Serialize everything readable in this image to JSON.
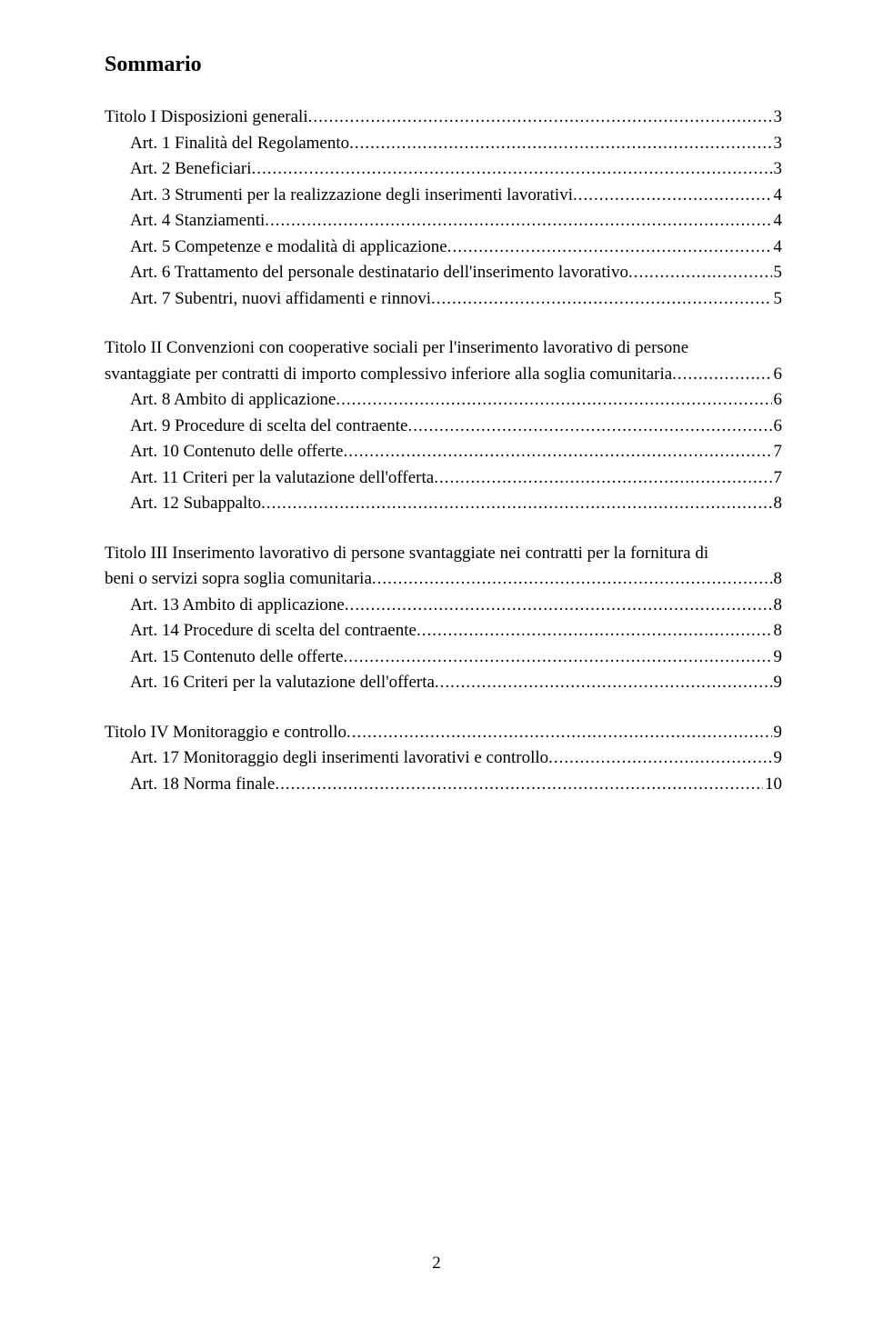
{
  "heading": "Sommario",
  "page_number": "2",
  "font_family": "Georgia, serif",
  "text_color": "#000000",
  "background_color": "#ffffff",
  "font_size_body": 19,
  "font_size_heading": 24,
  "groups": [
    {
      "entries": [
        {
          "label": "Titolo I Disposizioni generali",
          "page": "3",
          "indent": false
        },
        {
          "label": "Art. 1 Finalità del Regolamento",
          "page": "3",
          "indent": true
        },
        {
          "label": "Art. 2 Beneficiari",
          "page": "3",
          "indent": true
        },
        {
          "label": "Art. 3 Strumenti per la realizzazione degli inserimenti lavorativi",
          "page": "4",
          "indent": true
        },
        {
          "label": "Art. 4 Stanziamenti",
          "page": "4",
          "indent": true
        },
        {
          "label": "Art. 5 Competenze e modalità di applicazione",
          "page": "4",
          "indent": true
        },
        {
          "label": "Art. 6 Trattamento del personale destinatario dell'inserimento lavorativo",
          "page": "5",
          "indent": true
        },
        {
          "label": "Art. 7 Subentri, nuovi affidamenti e rinnovi",
          "page": "5",
          "indent": true
        }
      ]
    },
    {
      "entries": [
        {
          "wrap_lines": [
            "Titolo II Convenzioni con cooperative sociali per l'inserimento lavorativo di persone"
          ],
          "label": "svantaggiate per contratti di importo complessivo inferiore alla soglia comunitaria",
          "page": "6",
          "indent": false
        },
        {
          "label": "Art. 8 Ambito di applicazione",
          "page": "6",
          "indent": true
        },
        {
          "label": "Art. 9 Procedure di scelta del contraente",
          "page": "6",
          "indent": true
        },
        {
          "label": "Art. 10 Contenuto delle offerte",
          "page": "7",
          "indent": true
        },
        {
          "label": "Art. 11 Criteri per la valutazione dell'offerta",
          "page": "7",
          "indent": true
        },
        {
          "label": "Art. 12 Subappalto",
          "page": "8",
          "indent": true
        }
      ]
    },
    {
      "entries": [
        {
          "wrap_lines": [
            "Titolo III Inserimento lavorativo di persone svantaggiate nei contratti per la fornitura di"
          ],
          "label": "beni o servizi sopra soglia comunitaria",
          "page": "8",
          "indent": false
        },
        {
          "label": "Art. 13 Ambito di applicazione",
          "page": "8",
          "indent": true
        },
        {
          "label": "Art. 14 Procedure di scelta del contraente",
          "page": "8",
          "indent": true
        },
        {
          "label": "Art. 15 Contenuto delle offerte",
          "page": "9",
          "indent": true
        },
        {
          "label": "Art. 16 Criteri per la valutazione dell'offerta",
          "page": "9",
          "indent": true
        }
      ]
    },
    {
      "entries": [
        {
          "label": "Titolo IV Monitoraggio e controllo",
          "page": "9",
          "indent": false
        },
        {
          "label": "Art. 17 Monitoraggio degli inserimenti lavorativi e controllo",
          "page": "9",
          "indent": true
        },
        {
          "label": "Art. 18 Norma finale",
          "page": "10",
          "indent": true
        }
      ]
    }
  ]
}
